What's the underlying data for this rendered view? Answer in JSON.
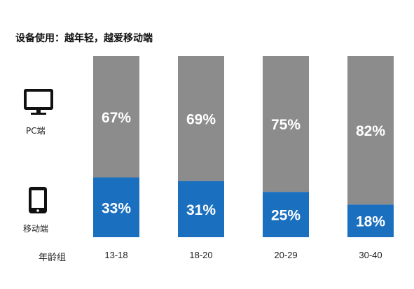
{
  "title": "设备使用：越年轻，越爱移动端",
  "side_labels": {
    "pc": "PC端",
    "mobile": "移动端"
  },
  "icons": {
    "pc": "monitor-icon",
    "mobile": "tablet-icon"
  },
  "colors": {
    "pc": "#8c8c8c",
    "mobile": "#1a6fbf",
    "label_text": "#ffffff",
    "axis_text": "#222222"
  },
  "chart_data": {
    "type": "bar",
    "stacked": true,
    "xlabel": "年龄组",
    "ylabel": "",
    "ylim": [
      0,
      100
    ],
    "grid": false,
    "categories": [
      "13-18",
      "18-20",
      "20-29",
      "30-40"
    ],
    "series": [
      {
        "name": "移动端",
        "values": [
          33,
          31,
          25,
          18
        ],
        "labels": [
          "33%",
          "31%",
          "25%",
          "18%"
        ]
      },
      {
        "name": "PC端",
        "values": [
          67,
          69,
          75,
          82
        ],
        "labels": [
          "67%",
          "69%",
          "75%",
          "82%"
        ]
      }
    ]
  }
}
